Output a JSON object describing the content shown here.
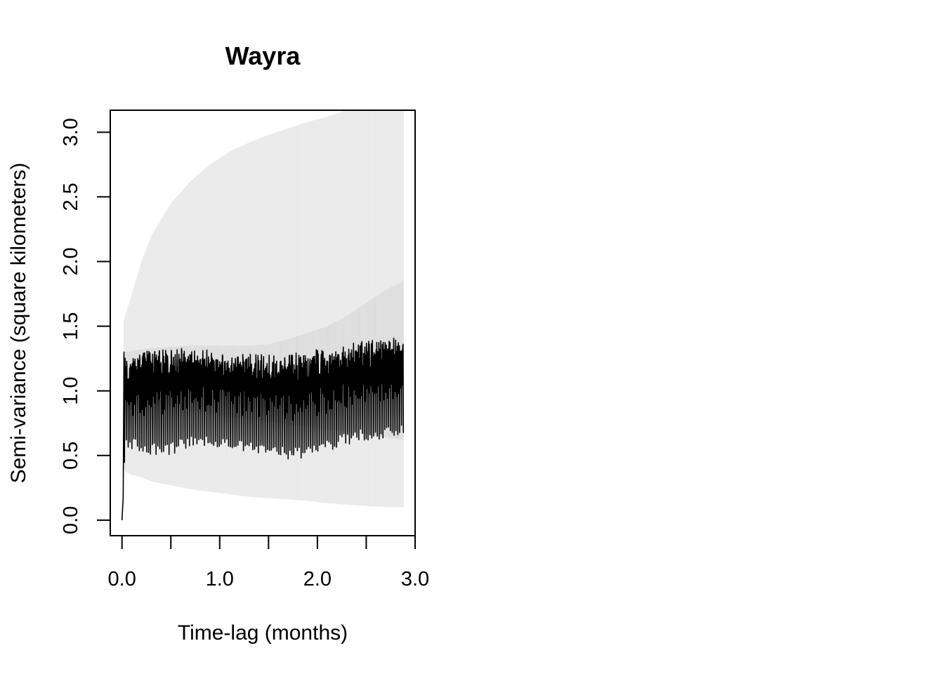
{
  "chart_data": {
    "type": "line",
    "title": "Wayra",
    "xlabel": "Time-lag (months)",
    "ylabel": "Semi-variance (square kilometers)",
    "xlim": [
      -0.12,
      3.0
    ],
    "ylim": [
      -0.12,
      3.17
    ],
    "x_ticks": [
      0.0,
      0.5,
      1.0,
      1.5,
      2.0,
      2.5,
      3.0
    ],
    "x_tick_labels": [
      "0.0",
      "1.0",
      "2.0",
      "3.0"
    ],
    "x_tick_label_values": [
      0.0,
      1.0,
      2.0,
      3.0
    ],
    "y_ticks": [
      0.0,
      0.5,
      1.0,
      1.5,
      2.0,
      2.5,
      3.0
    ],
    "y_tick_labels": [
      "0.0",
      "0.5",
      "1.0",
      "1.5",
      "2.0",
      "2.5",
      "3.0"
    ],
    "grid": false,
    "legend": "none",
    "colors": {
      "series": "#000000",
      "ci_outer": "#e8e8e8",
      "ci_inner": "#dcdcdc",
      "axis": "#000000"
    },
    "series": [
      {
        "x": [
          0.0,
          0.015,
          0.03,
          0.06,
          0.1,
          0.2,
          0.3,
          0.4,
          0.5,
          0.6,
          0.7,
          0.8,
          0.9,
          1.0,
          1.1,
          1.2,
          1.3,
          1.4,
          1.5,
          1.6,
          1.7,
          1.8,
          1.9,
          2.0,
          2.1,
          2.2,
          2.3,
          2.4,
          2.5,
          2.6,
          2.7,
          2.8,
          2.88
        ],
        "upper": [
          0.0,
          0.18,
          1.3,
          1.3,
          1.32,
          1.35,
          1.36,
          1.36,
          1.36,
          1.37,
          1.37,
          1.36,
          1.36,
          1.34,
          1.34,
          1.33,
          1.33,
          1.33,
          1.32,
          1.32,
          1.33,
          1.34,
          1.35,
          1.37,
          1.38,
          1.4,
          1.41,
          1.42,
          1.43,
          1.44,
          1.45,
          1.45,
          1.4
        ],
        "lower": [
          0.0,
          0.18,
          0.58,
          0.55,
          0.54,
          0.52,
          0.5,
          0.5,
          0.5,
          0.53,
          0.55,
          0.56,
          0.56,
          0.55,
          0.54,
          0.53,
          0.52,
          0.51,
          0.5,
          0.48,
          0.47,
          0.47,
          0.48,
          0.5,
          0.52,
          0.55,
          0.58,
          0.6,
          0.62,
          0.62,
          0.64,
          0.65,
          0.65
        ]
      }
    ],
    "ci_band": {
      "x": [
        0.02,
        0.1,
        0.2,
        0.3,
        0.5,
        0.7,
        0.9,
        1.1,
        1.3,
        1.5,
        1.7,
        1.9,
        2.1,
        2.3,
        2.5,
        2.7,
        2.88
      ],
      "outer_upper": [
        1.55,
        1.75,
        2.0,
        2.2,
        2.45,
        2.62,
        2.75,
        2.85,
        2.92,
        2.98,
        3.03,
        3.08,
        3.12,
        3.17,
        3.17,
        3.17,
        3.17
      ],
      "outer_lower": [
        0.38,
        0.35,
        0.33,
        0.3,
        0.27,
        0.24,
        0.22,
        0.2,
        0.18,
        0.17,
        0.16,
        0.15,
        0.13,
        0.12,
        0.11,
        0.1,
        0.1
      ],
      "inner_upper": [
        1.3,
        1.31,
        1.32,
        1.33,
        1.34,
        1.35,
        1.35,
        1.35,
        1.35,
        1.36,
        1.4,
        1.45,
        1.5,
        1.58,
        1.68,
        1.78,
        1.85
      ],
      "inner_lower": [
        1.0,
        0.95,
        0.92,
        0.9,
        0.88,
        0.85,
        0.83,
        0.8,
        0.78,
        0.76,
        0.74,
        0.72,
        0.7,
        0.68,
        0.66,
        0.64,
        0.62
      ]
    }
  }
}
